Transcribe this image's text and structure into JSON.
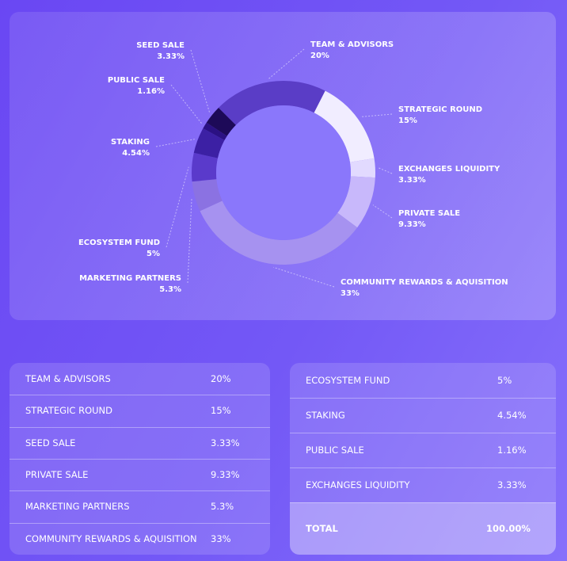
{
  "chart_data": {
    "type": "pie",
    "categories": [
      "TEAM & ADVISORS",
      "STRATEGIC ROUND",
      "EXCHANGES LIQUIDITY",
      "PRIVATE SALE",
      "COMMUNITY REWARDS & AQUISITION",
      "MARKETING PARTNERS",
      "ECOSYSTEM FUND",
      "STAKING",
      "PUBLIC SALE",
      "SEED SALE"
    ],
    "values": [
      20,
      15,
      3.33,
      9.33,
      33,
      5.3,
      5,
      4.54,
      1.16,
      3.33
    ],
    "value_labels": [
      "20%",
      "15%",
      "3.33%",
      "9.33%",
      "33%",
      "5.3%",
      "5%",
      "4.54%",
      "1.16%",
      "3.33%"
    ],
    "colors": [
      "#5a3dc6",
      "#f1edff",
      "#e2daff",
      "#c8b8fb",
      "#a692f0",
      "#8b72e2",
      "#5a3acb",
      "#3c20a4",
      "#2b1183",
      "#1d0a58"
    ]
  },
  "tables": {
    "left": {
      "rows": [
        [
          "TEAM & ADVISORS",
          "20%"
        ],
        [
          "STRATEGIC ROUND",
          "15%"
        ],
        [
          "SEED SALE",
          "3.33%"
        ],
        [
          "PRIVATE SALE",
          "9.33%"
        ],
        [
          "MARKETING PARTNERS",
          "5.3%"
        ],
        [
          "COMMUNITY REWARDS & AQUISITION",
          "33%"
        ]
      ]
    },
    "right": {
      "rows": [
        [
          "ECOSYSTEM FUND",
          "5%"
        ],
        [
          "STAKING",
          "4.54%"
        ],
        [
          "PUBLIC SALE",
          "1.16%"
        ],
        [
          "EXCHANGES LIQUIDITY",
          "3.33%"
        ]
      ],
      "total": [
        "TOTAL",
        "100.00%"
      ]
    }
  }
}
